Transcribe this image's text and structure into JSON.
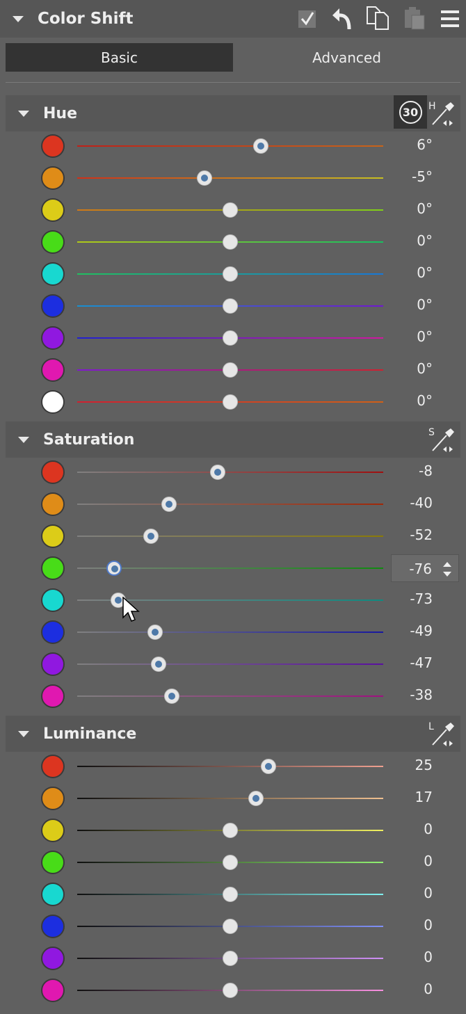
{
  "header": {
    "title": "Color Shift",
    "icons": [
      "checkbox-icon",
      "undo-icon",
      "copy-icon",
      "paste-icon",
      "menu-icon"
    ]
  },
  "tabs": [
    {
      "label": "Basic",
      "selected": true
    },
    {
      "label": "Advanced",
      "selected": false
    }
  ],
  "hue": {
    "label": "Hue",
    "badge": "30",
    "picker_letter": "H",
    "rows": [
      {
        "color": "#dc3520",
        "track": [
          "#c02018",
          "#c8641a"
        ],
        "value": 6,
        "text": "6°"
      },
      {
        "color": "#df8c18",
        "track": [
          "#d03018",
          "#c8c020"
        ],
        "value": -5,
        "text": "-5°"
      },
      {
        "color": "#dccc18",
        "track": [
          "#d07818",
          "#80d018"
        ],
        "value": 0,
        "text": "0°"
      },
      {
        "color": "#48dc18",
        "track": [
          "#b0c818",
          "#18c060"
        ],
        "value": 0,
        "text": "0°"
      },
      {
        "color": "#18d8d0",
        "track": [
          "#20c060",
          "#1878d8"
        ],
        "value": 0,
        "text": "0°"
      },
      {
        "color": "#1c2ee0",
        "track": [
          "#1890d0",
          "#7018d0"
        ],
        "value": 0,
        "text": "0°"
      },
      {
        "color": "#9018e0",
        "track": [
          "#2020d0",
          "#d018a0"
        ],
        "value": 0,
        "text": "0°"
      },
      {
        "color": "#e018b0",
        "track": [
          "#8018d0",
          "#d02030"
        ],
        "value": 0,
        "text": "0°"
      },
      {
        "color": "#ffffff",
        "track": [
          "#d02030",
          "#d06018"
        ],
        "value": 0,
        "text": "0°"
      }
    ]
  },
  "saturation": {
    "label": "Saturation",
    "picker_letter": "S",
    "rows": [
      {
        "color": "#dc3520",
        "track": [
          "#808080",
          "#a01010"
        ],
        "value": -8,
        "text": "-8"
      },
      {
        "color": "#df8c18",
        "track": [
          "#808080",
          "#a02808"
        ],
        "value": -40,
        "text": "-40"
      },
      {
        "color": "#dccc18",
        "track": [
          "#808080",
          "#8a7a08"
        ],
        "value": -52,
        "text": "-52"
      },
      {
        "color": "#48dc18",
        "track": [
          "#808080",
          "#108a10"
        ],
        "value": -76,
        "text": "-76",
        "editing": true
      },
      {
        "color": "#18d8d0",
        "track": [
          "#808080",
          "#108a80"
        ],
        "value": -73,
        "text": "-73"
      },
      {
        "color": "#1c2ee0",
        "track": [
          "#808080",
          "#1818a0"
        ],
        "value": -49,
        "text": "-49"
      },
      {
        "color": "#9018e0",
        "track": [
          "#808080",
          "#5a10a0"
        ],
        "value": -47,
        "text": "-47"
      },
      {
        "color": "#e018b0",
        "track": [
          "#808080",
          "#a01080"
        ],
        "value": -38,
        "text": "-38"
      }
    ]
  },
  "luminance": {
    "label": "Luminance",
    "picker_letter": "L",
    "rows": [
      {
        "color": "#dc3520",
        "track": [
          "#101010",
          "#f0a090"
        ],
        "value": 25,
        "text": "25"
      },
      {
        "color": "#df8c18",
        "track": [
          "#101010",
          "#f0c090"
        ],
        "value": 17,
        "text": "17"
      },
      {
        "color": "#dccc18",
        "track": [
          "#101010",
          "#f0f060"
        ],
        "value": 0,
        "text": "0"
      },
      {
        "color": "#48dc18",
        "track": [
          "#101010",
          "#90f070"
        ],
        "value": 0,
        "text": "0"
      },
      {
        "color": "#18d8d0",
        "track": [
          "#101010",
          "#80f0f0"
        ],
        "value": 0,
        "text": "0"
      },
      {
        "color": "#1c2ee0",
        "track": [
          "#101010",
          "#8090f8"
        ],
        "value": 0,
        "text": "0"
      },
      {
        "color": "#9018e0",
        "track": [
          "#101010",
          "#d090f8"
        ],
        "value": 0,
        "text": "0"
      },
      {
        "color": "#e018b0",
        "track": [
          "#101010",
          "#f890e0"
        ],
        "value": 0,
        "text": "0"
      }
    ]
  }
}
